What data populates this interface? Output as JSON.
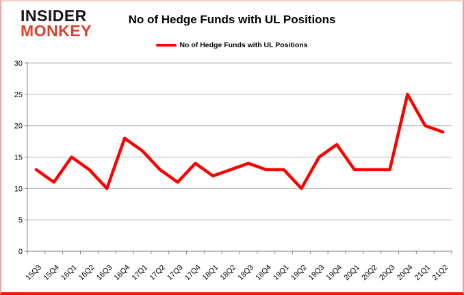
{
  "logo": {
    "line1": "INSIDER",
    "line2": "MONKEY"
  },
  "header": {
    "title": "No of Hedge Funds with UL Positions"
  },
  "legend": {
    "label": "No of Hedge Funds with UL Positions",
    "line_color": "#ff0000"
  },
  "colors": {
    "line": "#ff0000",
    "grid": "#b3b3b3",
    "axis": "#7f7f7f",
    "label": "#000000",
    "logo_black": "#151515",
    "logo_red": "#d9432e"
  },
  "chart_data": {
    "type": "line",
    "title": "No of Hedge Funds with UL Positions",
    "categories": [
      "15Q3",
      "15Q4",
      "16Q1",
      "16Q2",
      "16Q3",
      "16Q4",
      "17Q1",
      "17Q2",
      "17Q3",
      "17Q4",
      "18Q1",
      "18Q2",
      "18Q3",
      "18Q4",
      "19Q1",
      "19Q2",
      "19Q3",
      "19Q4",
      "20Q1",
      "20Q2",
      "20Q3",
      "20Q4",
      "21Q1",
      "21Q2"
    ],
    "series": [
      {
        "name": "No of Hedge Funds with UL Positions",
        "color": "#ff0000",
        "values": [
          13,
          11,
          15,
          13,
          10,
          18,
          16,
          13,
          11,
          14,
          12,
          13,
          14,
          13,
          13,
          10,
          15,
          17,
          13,
          13,
          13,
          25,
          20,
          19
        ]
      }
    ],
    "xlabel": "",
    "ylabel": "",
    "ylim": [
      0,
      30
    ],
    "yticks": [
      0,
      5,
      10,
      15,
      20,
      25,
      30
    ],
    "grid": true,
    "legend_position": "top-center"
  }
}
